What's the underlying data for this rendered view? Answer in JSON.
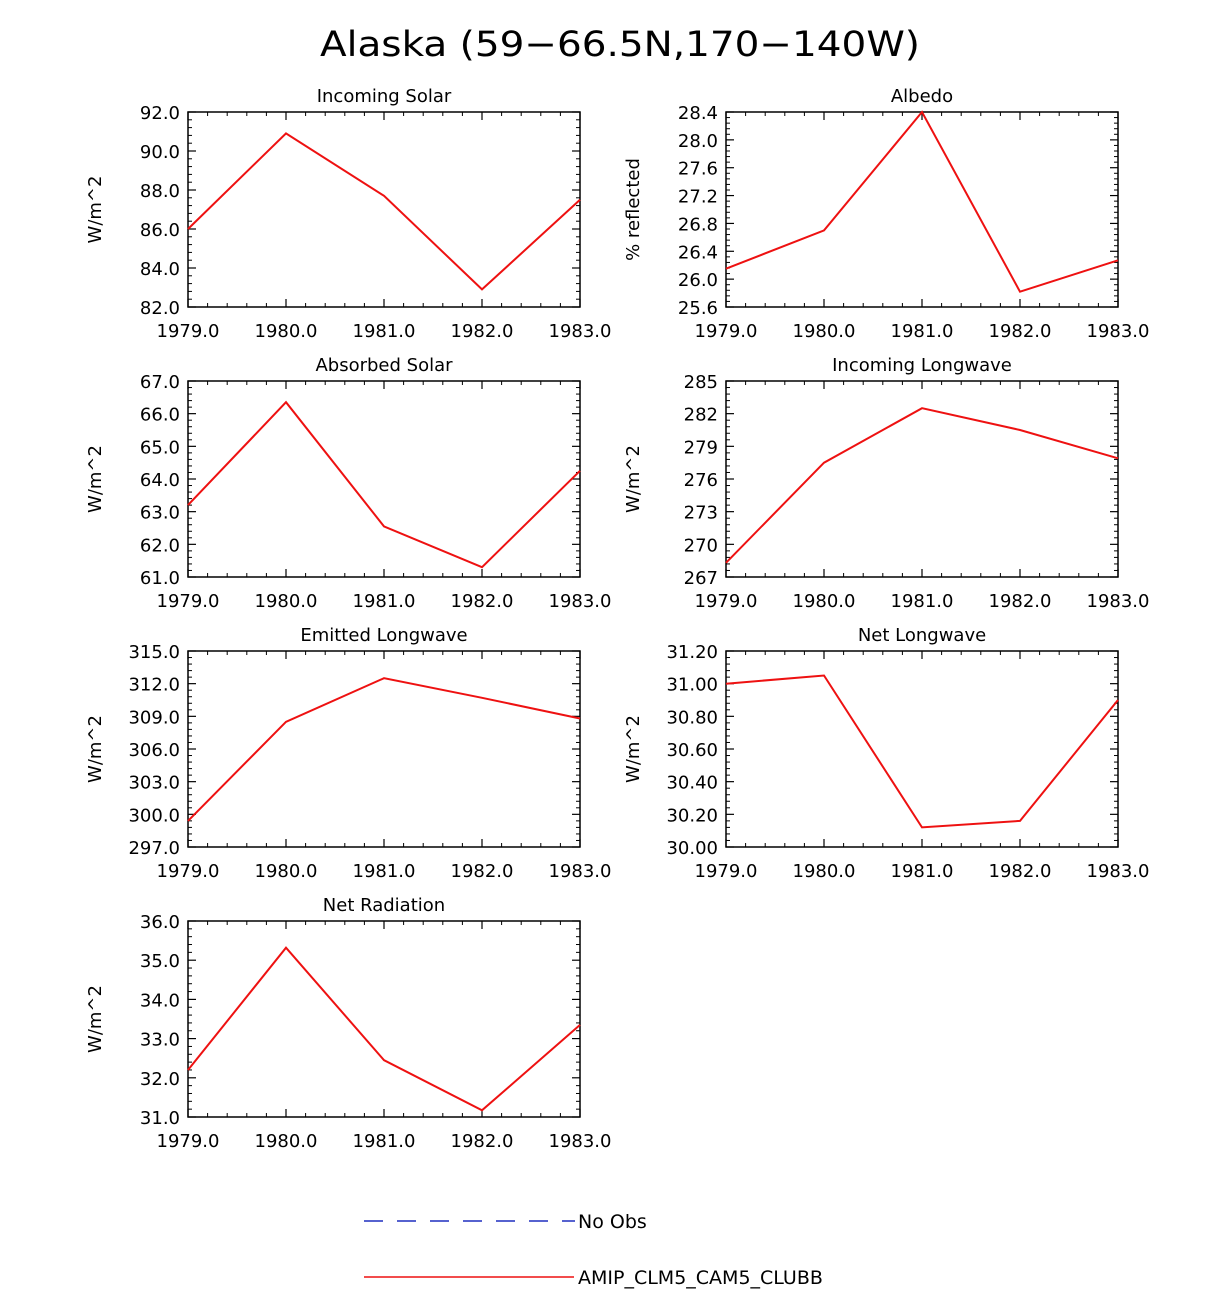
{
  "figure": {
    "title": "Alaska (59−66.5N,170−140W)"
  },
  "legend": {
    "items": [
      {
        "label": "No Obs",
        "color": "#1f2fbf",
        "dash": true
      },
      {
        "label": "AMIP_CLM5_CAM5_CLUBB",
        "color": "#ee1111",
        "dash": false
      }
    ]
  },
  "chart_data": [
    {
      "type": "line",
      "title": "Incoming Solar",
      "ylabel": "W/m^2",
      "x": [
        1979,
        1980,
        1981,
        1982,
        1983
      ],
      "xticks": [
        "1979.0",
        "1980.0",
        "1981.0",
        "1982.0",
        "1983.0"
      ],
      "ylim": [
        82,
        92
      ],
      "yticks": [
        "82.0",
        "84.0",
        "86.0",
        "88.0",
        "90.0",
        "92.0"
      ],
      "series": [
        {
          "name": "AMIP_CLM5_CAM5_CLUBB",
          "color": "#ee1111",
          "values": [
            86.0,
            90.9,
            87.7,
            82.9,
            87.5
          ]
        }
      ]
    },
    {
      "type": "line",
      "title": "Albedo",
      "ylabel": "% reflected",
      "x": [
        1979,
        1980,
        1981,
        1982,
        1983
      ],
      "xticks": [
        "1979.0",
        "1980.0",
        "1981.0",
        "1982.0",
        "1983.0"
      ],
      "ylim": [
        25.6,
        28.4
      ],
      "yticks": [
        "25.6",
        "26.0",
        "26.4",
        "26.8",
        "27.2",
        "27.6",
        "28.0",
        "28.4"
      ],
      "series": [
        {
          "name": "AMIP_CLM5_CAM5_CLUBB",
          "color": "#ee1111",
          "values": [
            26.15,
            26.7,
            28.4,
            25.82,
            26.27
          ]
        }
      ]
    },
    {
      "type": "line",
      "title": "Absorbed Solar",
      "ylabel": "W/m^2",
      "x": [
        1979,
        1980,
        1981,
        1982,
        1983
      ],
      "xticks": [
        "1979.0",
        "1980.0",
        "1981.0",
        "1982.0",
        "1983.0"
      ],
      "ylim": [
        61,
        67
      ],
      "yticks": [
        "61.0",
        "62.0",
        "63.0",
        "64.0",
        "65.0",
        "66.0",
        "67.0"
      ],
      "series": [
        {
          "name": "AMIP_CLM5_CAM5_CLUBB",
          "color": "#ee1111",
          "values": [
            63.2,
            66.35,
            62.55,
            61.3,
            64.25
          ]
        }
      ]
    },
    {
      "type": "line",
      "title": "Incoming Longwave",
      "ylabel": "W/m^2",
      "x": [
        1979,
        1980,
        1981,
        1982,
        1983
      ],
      "xticks": [
        "1979.0",
        "1980.0",
        "1981.0",
        "1982.0",
        "1983.0"
      ],
      "ylim": [
        267,
        285
      ],
      "yticks": [
        "267",
        "270",
        "273",
        "276",
        "279",
        "282",
        "285"
      ],
      "series": [
        {
          "name": "AMIP_CLM5_CAM5_CLUBB",
          "color": "#ee1111",
          "values": [
            268.3,
            277.5,
            282.5,
            280.5,
            277.9
          ]
        }
      ]
    },
    {
      "type": "line",
      "title": "Emitted Longwave",
      "ylabel": "W/m^2",
      "x": [
        1979,
        1980,
        1981,
        1982,
        1983
      ],
      "xticks": [
        "1979.0",
        "1980.0",
        "1981.0",
        "1982.0",
        "1983.0"
      ],
      "ylim": [
        297,
        315
      ],
      "yticks": [
        "297.0",
        "300.0",
        "303.0",
        "306.0",
        "309.0",
        "312.0",
        "315.0"
      ],
      "series": [
        {
          "name": "AMIP_CLM5_CAM5_CLUBB",
          "color": "#ee1111",
          "values": [
            299.4,
            308.5,
            312.5,
            310.7,
            308.8
          ]
        }
      ]
    },
    {
      "type": "line",
      "title": "Net Longwave",
      "ylabel": "W/m^2",
      "x": [
        1979,
        1980,
        1981,
        1982,
        1983
      ],
      "xticks": [
        "1979.0",
        "1980.0",
        "1981.0",
        "1982.0",
        "1983.0"
      ],
      "ylim": [
        30.0,
        31.2
      ],
      "yticks": [
        "30.00",
        "30.20",
        "30.40",
        "30.60",
        "30.80",
        "31.00",
        "31.20"
      ],
      "series": [
        {
          "name": "AMIP_CLM5_CAM5_CLUBB",
          "color": "#ee1111",
          "values": [
            31.0,
            31.05,
            30.12,
            30.16,
            30.9
          ]
        }
      ]
    },
    {
      "type": "line",
      "title": "Net Radiation",
      "ylabel": "W/m^2",
      "x": [
        1979,
        1980,
        1981,
        1982,
        1983
      ],
      "xticks": [
        "1979.0",
        "1980.0",
        "1981.0",
        "1982.0",
        "1983.0"
      ],
      "ylim": [
        31,
        36
      ],
      "yticks": [
        "31.0",
        "32.0",
        "33.0",
        "34.0",
        "35.0",
        "36.0"
      ],
      "series": [
        {
          "name": "AMIP_CLM5_CAM5_CLUBB",
          "color": "#ee1111",
          "values": [
            32.2,
            35.32,
            32.45,
            31.17,
            33.35
          ]
        }
      ]
    }
  ]
}
